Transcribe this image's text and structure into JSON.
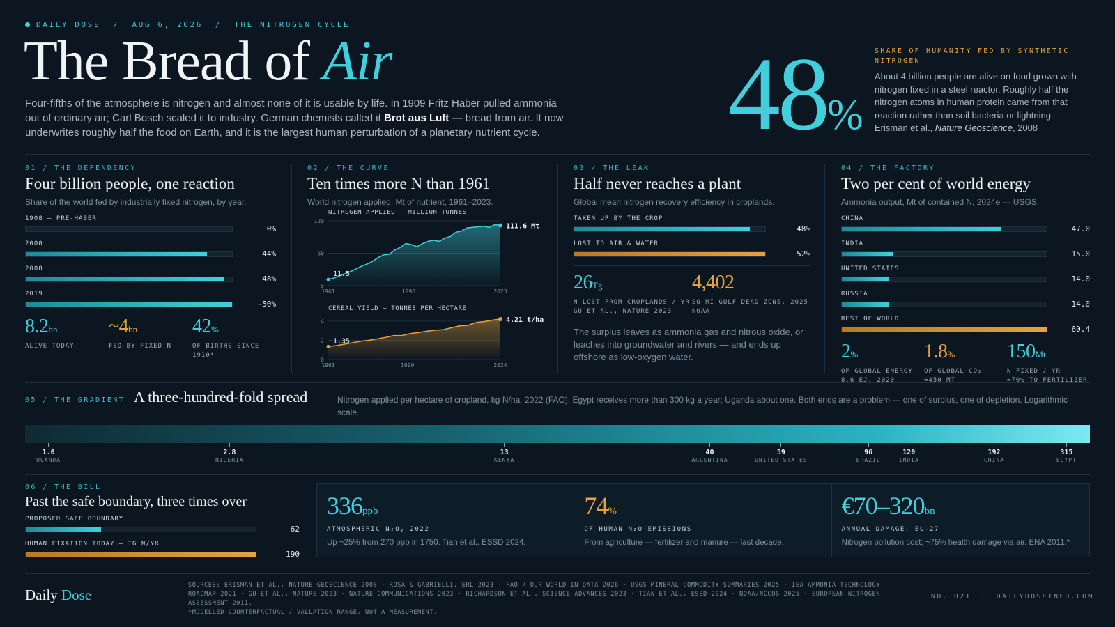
{
  "header": {
    "brand": "DAILY DOSE",
    "date": "AUG 6, 2026",
    "topic": "THE NITROGEN CYCLE",
    "title_main": "The Bread of ",
    "title_accent": "Air",
    "intro_a": "Four-fifths of the atmosphere is nitrogen and almost none of it is usable by life. In 1909 Fritz Haber pulled ammonia out of ordinary air; Carl Bosch scaled it to industry. German chemists called it ",
    "intro_bold": "Brot aus Luft",
    "intro_b": " — bread from air. It now underwrites roughly half the food on Earth, and it is the largest human perturbation of a planetary nutrient cycle."
  },
  "hero": {
    "value": "48",
    "unit": "%",
    "kicker": "SHARE OF HUMANITY FED BY SYNTHETIC NITROGEN",
    "body": "About 4 billion people are alive on food grown with nitrogen fixed in a steel reactor. Roughly half the nitrogen atoms in human protein came from that reaction rather than soil bacteria or lightning. — Erisman et al., ",
    "journal": "Nature Geoscience",
    "year": ", 2008"
  },
  "panel1": {
    "kicker": "01 / THE DEPENDENCY",
    "heading": "Four billion people, one reaction",
    "sub": "Share of the world fed by industrially fixed nitrogen, by year.",
    "bars": [
      {
        "label": "1908 — PRE-HABER",
        "value": "0%",
        "frac": 0.0
      },
      {
        "label": "2000",
        "value": "44%",
        "frac": 0.88
      },
      {
        "label": "2008",
        "value": "48%",
        "frac": 0.96
      },
      {
        "label": "2019",
        "value": "~50%",
        "frac": 1.0
      }
    ],
    "stats": [
      {
        "value": "8.2",
        "unit": "bn",
        "caption": "ALIVE TODAY",
        "caption2": "",
        "color": "teal"
      },
      {
        "value": "~4",
        "unit": "bn",
        "caption": "FED BY FIXED N",
        "caption2": "",
        "color": "amber"
      },
      {
        "value": "42",
        "unit": "%",
        "caption": "OF BIRTHS SINCE",
        "caption2": "1910*",
        "color": "teal"
      }
    ]
  },
  "panel2": {
    "kicker": "02 / THE CURVE",
    "heading": "Ten times more N than 1961",
    "sub": "World nitrogen applied, Mt of nutrient, 1961–2023.",
    "chart_data": [
      {
        "type": "area",
        "title": "NITROGEN APPLIED — MILLION TONNES",
        "x_ticks": [
          "1961",
          "1990",
          "2023"
        ],
        "y_ticks": [
          "120",
          "60",
          "0"
        ],
        "ylim": [
          0,
          120
        ],
        "x": [
          1961,
          1963,
          1965,
          1967,
          1969,
          1971,
          1973,
          1975,
          1977,
          1979,
          1981,
          1983,
          1985,
          1987,
          1989,
          1991,
          1993,
          1995,
          1997,
          1999,
          2001,
          2003,
          2005,
          2007,
          2009,
          2011,
          2013,
          2015,
          2017,
          2019,
          2021,
          2023
        ],
        "values": [
          11.5,
          14,
          18,
          22,
          26,
          31,
          36,
          40,
          45,
          52,
          57,
          58,
          66,
          71,
          78,
          76,
          72,
          78,
          82,
          84,
          82,
          88,
          91,
          99,
          101,
          107,
          108,
          109,
          110,
          108,
          113,
          111.6
        ],
        "start_label": "11.5",
        "end_label": "111.6 Mt"
      },
      {
        "type": "area",
        "title": "CEREAL YIELD — TONNES PER HECTARE",
        "x_ticks": [
          "1961",
          "1990",
          "2024"
        ],
        "y_ticks": [
          "4",
          "2",
          "0"
        ],
        "ylim": [
          0,
          4.5
        ],
        "x": [
          1961,
          1964,
          1967,
          1970,
          1973,
          1976,
          1979,
          1982,
          1985,
          1988,
          1991,
          1994,
          1997,
          2000,
          2003,
          2006,
          2009,
          2012,
          2015,
          2018,
          2021,
          2024
        ],
        "values": [
          1.35,
          1.45,
          1.6,
          1.75,
          1.9,
          2.0,
          2.15,
          2.3,
          2.5,
          2.5,
          2.7,
          2.8,
          2.95,
          3.05,
          3.1,
          3.3,
          3.5,
          3.55,
          3.85,
          3.95,
          4.1,
          4.21
        ],
        "start_label": "1.35",
        "end_label": "4.21 t/ha"
      }
    ]
  },
  "panel3": {
    "kicker": "03 / THE LEAK",
    "heading": "Half never reaches a plant",
    "sub": "Global mean nitrogen recovery efficiency in croplands.",
    "bars": [
      {
        "label": "TAKEN UP BY THE CROP",
        "value": "48%",
        "frac": 0.92,
        "color": "teal"
      },
      {
        "label": "LOST TO AIR & WATER",
        "value": "52%",
        "frac": 1.0,
        "color": "amber"
      }
    ],
    "stats": [
      {
        "value": "26",
        "unit": "Tg",
        "caption": "N LOST FROM CROPLANDS / YR",
        "caption2": "GU ET AL., NATURE 2023",
        "color": "teal"
      },
      {
        "value": "4,402",
        "unit": "",
        "caption": "SQ MI GULF DEAD ZONE, 2025",
        "caption2": "NOAA",
        "color": "amber"
      }
    ],
    "note": "The surplus leaves as ammonia gas and nitrous oxide, or leaches into groundwater and rivers — and ends up offshore as low-oxygen water."
  },
  "panel4": {
    "kicker": "04 / THE FACTORY",
    "heading": "Two per cent of world energy",
    "sub": "Ammonia output, Mt of contained N, 2024e — USGS.",
    "bars": [
      {
        "label": "CHINA",
        "value": "47.0",
        "frac": 0.78,
        "color": "teal"
      },
      {
        "label": "INDIA",
        "value": "15.0",
        "frac": 0.25,
        "color": "teal"
      },
      {
        "label": "UNITED STATES",
        "value": "14.0",
        "frac": 0.233,
        "color": "teal"
      },
      {
        "label": "RUSSIA",
        "value": "14.0",
        "frac": 0.233,
        "color": "teal"
      },
      {
        "label": "REST OF WORLD",
        "value": "60.4",
        "frac": 1.0,
        "color": "amber"
      }
    ],
    "stats": [
      {
        "value": "2",
        "unit": "%",
        "caption": "OF GLOBAL ENERGY",
        "caption2": "8.6 EJ, 2020",
        "color": "teal"
      },
      {
        "value": "1.8",
        "unit": "%",
        "caption": "OF GLOBAL CO₂",
        "caption2": "≈450 MT",
        "color": "amber"
      },
      {
        "value": "150",
        "unit": "Mt",
        "caption": "N FIXED / YR",
        "caption2": "≈70% TO FERTILIZER",
        "color": "teal"
      }
    ]
  },
  "gradient": {
    "kicker": "05 / THE GRADIENT",
    "heading": "A three-hundred-fold spread",
    "desc": "Nitrogen applied per hectare of cropland, kg N/ha, 2022 (FAO). Egypt receives more than 300 kg a year; Uganda about one. Both ends are a problem — one of surplus, one of depletion. Logarithmic scale.",
    "ticks": [
      {
        "value": "1.0",
        "name": "UGANDA",
        "pos": 0.022
      },
      {
        "value": "2.8",
        "name": "NIGERIA",
        "pos": 0.192
      },
      {
        "value": "13",
        "name": "KENYA",
        "pos": 0.45
      },
      {
        "value": "40",
        "name": "ARGENTINA",
        "pos": 0.643
      },
      {
        "value": "59",
        "name": "UNITED STATES",
        "pos": 0.71
      },
      {
        "value": "96",
        "name": "BRAZIL",
        "pos": 0.792
      },
      {
        "value": "120",
        "name": "INDIA",
        "pos": 0.83
      },
      {
        "value": "192",
        "name": "CHINA",
        "pos": 0.91
      },
      {
        "value": "315",
        "name": "EGYPT",
        "pos": 0.978
      }
    ]
  },
  "bill": {
    "kicker": "06 / THE BILL",
    "heading": "Past the safe boundary, three times over",
    "bars": [
      {
        "label": "PROPOSED SAFE BOUNDARY",
        "value": "62",
        "frac": 0.326,
        "color": "teal"
      },
      {
        "label": "HUMAN FIXATION TODAY — TG N/YR",
        "value": "190",
        "frac": 1.0,
        "color": "amber"
      }
    ],
    "cards": [
      {
        "value": "336",
        "unit": "ppb",
        "caption": "ATMOSPHERIC N₂O, 2022",
        "note": "Up ~25% from 270 ppb in 1750. Tian et al., ESSD 2024.",
        "color": "teal"
      },
      {
        "value": "74",
        "unit": "%",
        "caption": "OF HUMAN N₂O EMISSIONS",
        "note": "From agriculture — fertilizer and manure — last decade.",
        "color": "amber"
      },
      {
        "value": "€70–320",
        "unit": "bn",
        "caption": "ANNUAL DAMAGE, EU-27",
        "note": "Nitrogen pollution cost; ~75% health damage via air. ENA 2011.*",
        "color": "teal"
      }
    ]
  },
  "footer": {
    "brand_a": "Daily ",
    "brand_b": "Dose",
    "sources": "SOURCES: ERISMAN ET AL., NATURE GEOSCIENCE 2008 · ROSA & GABRIELLI, ERL 2023 · FAO / OUR WORLD IN DATA 2026 · USGS MINERAL COMMODITY SUMMARIES 2025 · IEA AMMONIA TECHNOLOGY ROADMAP 2021 · GU ET AL., NATURE 2023 · NATURE COMMUNICATIONS 2023 · RICHARDSON ET AL., SCIENCE ADVANCES 2023 · TIAN ET AL., ESSD 2024 · NOAA/NCCOS 2025 · EUROPEAN NITROGEN ASSESSMENT 2011.",
    "footnote": "*MODELLED COUNTERFACTUAL / VALUATION RANGE, NOT A MEASUREMENT.",
    "issue": "NO. 021",
    "site": "DAILYDOSEINFO.COM"
  },
  "colors": {
    "teal": "#3fd0dc",
    "amber": "#e5a23d",
    "background": "#0b1620"
  }
}
